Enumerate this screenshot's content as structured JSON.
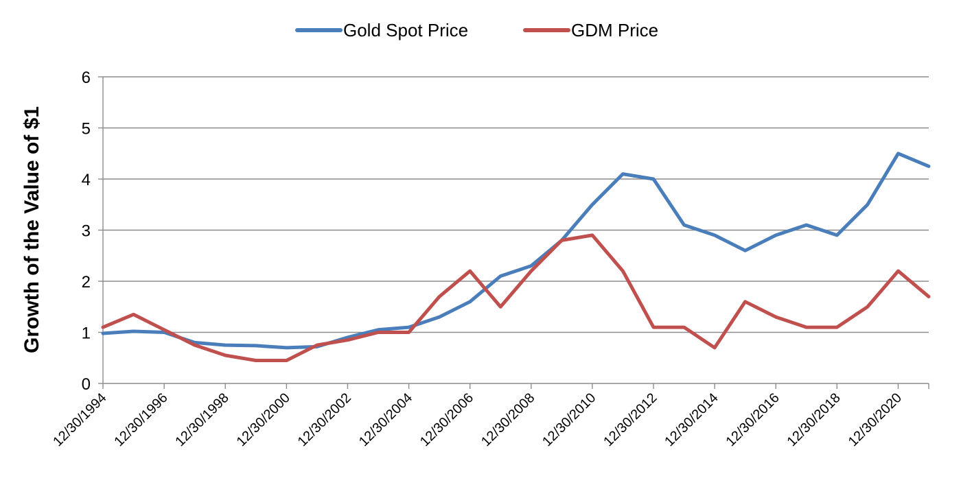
{
  "chart_data": {
    "type": "line",
    "ylabel": "Growth of the Value of $1",
    "xlabel": "",
    "ylim": [
      0,
      6
    ],
    "yticks": [
      "0",
      "1",
      "2",
      "3",
      "4",
      "5",
      "6"
    ],
    "xlim": [
      "12/30/1994",
      "12/30/2021"
    ],
    "xtick_labels": [
      "12/30/1994",
      "12/30/1996",
      "12/30/1998",
      "12/30/2000",
      "12/30/2002",
      "12/30/2004",
      "12/30/2006",
      "12/30/2008",
      "12/30/2010",
      "12/30/2012",
      "12/30/2014",
      "12/30/2016",
      "12/30/2018",
      "12/30/2020"
    ],
    "grid": "horizontal",
    "legend_position": "top",
    "series": [
      {
        "name": "Gold Spot Price",
        "color": "#4a7ebb",
        "points": [
          [
            "12/30/1994",
            0.98
          ],
          [
            "12/30/1995",
            1.02
          ],
          [
            "12/30/1996",
            1.0
          ],
          [
            "12/30/1997",
            0.8
          ],
          [
            "12/30/1998",
            0.75
          ],
          [
            "12/30/1999",
            0.74
          ],
          [
            "12/30/2000",
            0.7
          ],
          [
            "12/30/2001",
            0.72
          ],
          [
            "12/30/2002",
            0.9
          ],
          [
            "12/30/2003",
            1.05
          ],
          [
            "12/30/2004",
            1.1
          ],
          [
            "12/30/2005",
            1.3
          ],
          [
            "12/30/2006",
            1.6
          ],
          [
            "12/30/2007",
            2.1
          ],
          [
            "12/30/2008",
            2.3
          ],
          [
            "12/30/2009",
            2.8
          ],
          [
            "12/30/2010",
            3.5
          ],
          [
            "12/30/2011",
            4.1
          ],
          [
            "12/30/2012",
            4.0
          ],
          [
            "12/30/2013",
            3.1
          ],
          [
            "12/30/2014",
            2.9
          ],
          [
            "12/30/2015",
            2.6
          ],
          [
            "12/30/2016",
            2.9
          ],
          [
            "12/30/2017",
            3.1
          ],
          [
            "12/30/2018",
            2.9
          ],
          [
            "12/30/2019",
            3.5
          ],
          [
            "12/30/2020",
            4.5
          ],
          [
            "12/30/2021",
            4.25
          ]
        ]
      },
      {
        "name": "GDM Price",
        "color": "#c0504d",
        "points": [
          [
            "12/30/1994",
            1.1
          ],
          [
            "12/30/1995",
            1.35
          ],
          [
            "12/30/1996",
            1.05
          ],
          [
            "12/30/1997",
            0.75
          ],
          [
            "12/30/1998",
            0.55
          ],
          [
            "12/30/1999",
            0.45
          ],
          [
            "12/30/2000",
            0.45
          ],
          [
            "12/30/2001",
            0.75
          ],
          [
            "12/30/2002",
            0.85
          ],
          [
            "12/30/2003",
            1.0
          ],
          [
            "12/30/2004",
            1.0
          ],
          [
            "12/30/2005",
            1.7
          ],
          [
            "12/30/2006",
            2.2
          ],
          [
            "12/30/2007",
            1.5
          ],
          [
            "12/30/2008",
            2.2
          ],
          [
            "12/30/2009",
            2.8
          ],
          [
            "12/30/2010",
            2.9
          ],
          [
            "12/30/2011",
            2.2
          ],
          [
            "12/30/2012",
            1.1
          ],
          [
            "12/30/2013",
            1.1
          ],
          [
            "12/30/2014",
            0.7
          ],
          [
            "12/30/2015",
            1.6
          ],
          [
            "12/30/2016",
            1.3
          ],
          [
            "12/30/2017",
            1.1
          ],
          [
            "12/30/2018",
            1.1
          ],
          [
            "12/30/2019",
            1.5
          ],
          [
            "12/30/2020",
            2.2
          ],
          [
            "12/30/2021",
            1.7
          ]
        ]
      }
    ]
  }
}
